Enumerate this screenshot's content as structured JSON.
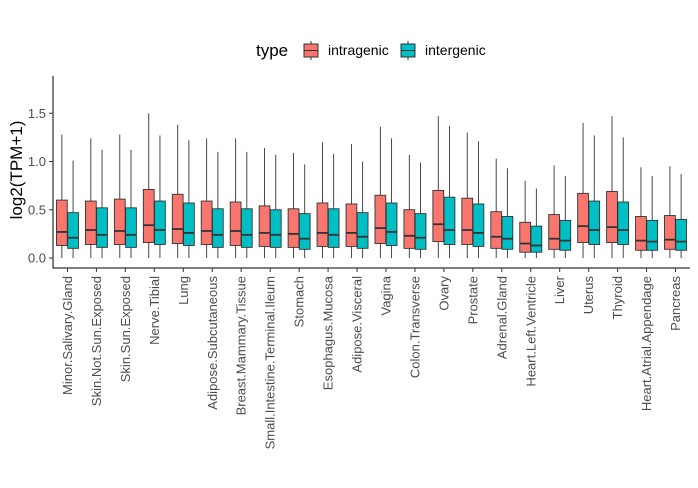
{
  "chart_data": {
    "type": "boxplot",
    "title": "",
    "xlabel": "",
    "ylabel": "log2(TPM+1)",
    "ylim": [
      -0.05,
      1.85
    ],
    "yticks": [
      0.0,
      0.5,
      1.0,
      1.5
    ],
    "ytick_labels": [
      "0.0",
      "0.5",
      "1.0",
      "1.5"
    ],
    "grid": false,
    "legend": {
      "title": "type",
      "position": "top",
      "entries": [
        {
          "name": "intragenic",
          "color": "#F8766D"
        },
        {
          "name": "intergenic",
          "color": "#00BFC4"
        }
      ]
    },
    "categories": [
      "Minor.Salivary.Gland",
      "Skin.Not.Sun.Exposed",
      "Skin.Sun.Exposed",
      "Nerve.Tibial",
      "Lung",
      "Adipose.Subcutaneous",
      "Breast.Mammary.Tissue",
      "Small.Intestine.Terminal.Ileum",
      "Stomach",
      "Esophagus.Mucosa",
      "Adipose.Visceral",
      "Vagina",
      "Colon.Transverse",
      "Ovary",
      "Prostate",
      "Adrenal.Gland",
      "Heart.Left.Ventricle",
      "Liver",
      "Uterus",
      "Thyroid",
      "Heart.Atrial.Appendage",
      "Pancreas"
    ],
    "series": [
      {
        "name": "intragenic",
        "boxes": [
          {
            "min": 0,
            "q1": 0.13,
            "median": 0.27,
            "q3": 0.6,
            "max": 1.28
          },
          {
            "min": 0,
            "q1": 0.14,
            "median": 0.29,
            "q3": 0.59,
            "max": 1.24
          },
          {
            "min": 0,
            "q1": 0.14,
            "median": 0.28,
            "q3": 0.61,
            "max": 1.28
          },
          {
            "min": 0,
            "q1": 0.16,
            "median": 0.34,
            "q3": 0.71,
            "max": 1.5
          },
          {
            "min": 0,
            "q1": 0.15,
            "median": 0.3,
            "q3": 0.66,
            "max": 1.38
          },
          {
            "min": 0,
            "q1": 0.14,
            "median": 0.28,
            "q3": 0.59,
            "max": 1.24
          },
          {
            "min": 0,
            "q1": 0.13,
            "median": 0.28,
            "q3": 0.58,
            "max": 1.24
          },
          {
            "min": 0,
            "q1": 0.12,
            "median": 0.26,
            "q3": 0.54,
            "max": 1.14
          },
          {
            "min": 0,
            "q1": 0.11,
            "median": 0.25,
            "q3": 0.51,
            "max": 1.09
          },
          {
            "min": 0,
            "q1": 0.12,
            "median": 0.26,
            "q3": 0.57,
            "max": 1.2
          },
          {
            "min": 0,
            "q1": 0.12,
            "median": 0.26,
            "q3": 0.56,
            "max": 1.18
          },
          {
            "min": 0,
            "q1": 0.15,
            "median": 0.31,
            "q3": 0.65,
            "max": 1.36
          },
          {
            "min": 0,
            "q1": 0.1,
            "median": 0.23,
            "q3": 0.5,
            "max": 1.07
          },
          {
            "min": 0,
            "q1": 0.17,
            "median": 0.35,
            "q3": 0.7,
            "max": 1.47
          },
          {
            "min": 0,
            "q1": 0.14,
            "median": 0.29,
            "q3": 0.62,
            "max": 1.3
          },
          {
            "min": 0,
            "q1": 0.1,
            "median": 0.22,
            "q3": 0.48,
            "max": 1.03
          },
          {
            "min": 0,
            "q1": 0.06,
            "median": 0.15,
            "q3": 0.37,
            "max": 0.8
          },
          {
            "min": 0,
            "q1": 0.09,
            "median": 0.2,
            "q3": 0.45,
            "max": 0.96
          },
          {
            "min": 0,
            "q1": 0.16,
            "median": 0.33,
            "q3": 0.67,
            "max": 1.4
          },
          {
            "min": 0,
            "q1": 0.16,
            "median": 0.32,
            "q3": 0.69,
            "max": 1.47
          },
          {
            "min": 0,
            "q1": 0.08,
            "median": 0.18,
            "q3": 0.43,
            "max": 0.94
          },
          {
            "min": 0,
            "q1": 0.09,
            "median": 0.19,
            "q3": 0.44,
            "max": 0.95
          }
        ]
      },
      {
        "name": "intergenic",
        "boxes": [
          {
            "min": 0,
            "q1": 0.1,
            "median": 0.21,
            "q3": 0.47,
            "max": 1.01
          },
          {
            "min": 0,
            "q1": 0.11,
            "median": 0.24,
            "q3": 0.52,
            "max": 1.12
          },
          {
            "min": 0,
            "q1": 0.11,
            "median": 0.24,
            "q3": 0.52,
            "max": 1.12
          },
          {
            "min": 0,
            "q1": 0.14,
            "median": 0.29,
            "q3": 0.59,
            "max": 1.27
          },
          {
            "min": 0,
            "q1": 0.13,
            "median": 0.26,
            "q3": 0.57,
            "max": 1.22
          },
          {
            "min": 0,
            "q1": 0.11,
            "median": 0.24,
            "q3": 0.51,
            "max": 1.1
          },
          {
            "min": 0,
            "q1": 0.11,
            "median": 0.24,
            "q3": 0.51,
            "max": 1.1
          },
          {
            "min": 0,
            "q1": 0.11,
            "median": 0.24,
            "q3": 0.5,
            "max": 1.07
          },
          {
            "min": 0,
            "q1": 0.09,
            "median": 0.2,
            "q3": 0.46,
            "max": 0.97
          },
          {
            "min": 0,
            "q1": 0.11,
            "median": 0.24,
            "q3": 0.51,
            "max": 1.08
          },
          {
            "min": 0,
            "q1": 0.1,
            "median": 0.22,
            "q3": 0.47,
            "max": 1.0
          },
          {
            "min": 0,
            "q1": 0.13,
            "median": 0.27,
            "q3": 0.57,
            "max": 1.24
          },
          {
            "min": 0,
            "q1": 0.09,
            "median": 0.21,
            "q3": 0.46,
            "max": 0.99
          },
          {
            "min": 0,
            "q1": 0.14,
            "median": 0.29,
            "q3": 0.63,
            "max": 1.37
          },
          {
            "min": 0,
            "q1": 0.12,
            "median": 0.26,
            "q3": 0.56,
            "max": 1.21
          },
          {
            "min": 0,
            "q1": 0.09,
            "median": 0.2,
            "q3": 0.43,
            "max": 0.93
          },
          {
            "min": 0,
            "q1": 0.06,
            "median": 0.13,
            "q3": 0.33,
            "max": 0.72
          },
          {
            "min": 0,
            "q1": 0.08,
            "median": 0.18,
            "q3": 0.39,
            "max": 0.85
          },
          {
            "min": 0,
            "q1": 0.14,
            "median": 0.29,
            "q3": 0.59,
            "max": 1.27
          },
          {
            "min": 0,
            "q1": 0.14,
            "median": 0.29,
            "q3": 0.58,
            "max": 1.25
          },
          {
            "min": 0,
            "q1": 0.08,
            "median": 0.17,
            "q3": 0.39,
            "max": 0.85
          },
          {
            "min": 0,
            "q1": 0.08,
            "median": 0.17,
            "q3": 0.4,
            "max": 0.87
          }
        ]
      }
    ]
  }
}
